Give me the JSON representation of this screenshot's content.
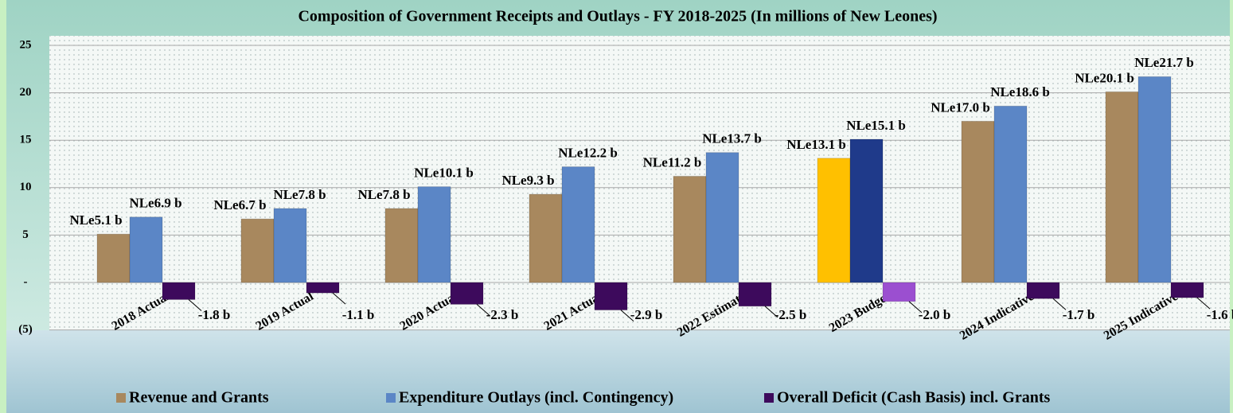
{
  "chart_data": {
    "type": "bar",
    "title": "Composition of Government Receipts and Outlays - FY 2018-2025 (In millions of New Leones)",
    "categories": [
      "2018 Actual",
      "2019 Actual",
      "2020 Actual",
      "2021 Actual",
      "2022 Estimate",
      "2023 Budget",
      "2024 Indicative",
      "2025 Indicative"
    ],
    "series": [
      {
        "name": "Revenue and Grants",
        "color": "#a8885e",
        "colors": [
          "#a8885e",
          "#a8885e",
          "#a8885e",
          "#a8885e",
          "#a8885e",
          "#ffc000",
          "#a8885e",
          "#a8885e"
        ],
        "values": [
          5.1,
          6.7,
          7.8,
          9.3,
          11.2,
          13.1,
          17.0,
          20.1
        ],
        "value_labels": [
          "NLe5.1 b",
          "NLe6.7 b",
          "NLe7.8 b",
          "NLe9.3 b",
          "NLe11.2 b",
          "NLe13.1 b",
          "NLe17.0 b",
          "NLe20.1 b"
        ]
      },
      {
        "name": "Expenditure Outlays (incl. Contingency)",
        "color": "#5b86c6",
        "colors": [
          "#5b86c6",
          "#5b86c6",
          "#5b86c6",
          "#5b86c6",
          "#5b86c6",
          "#1f3a8a",
          "#5b86c6",
          "#5b86c6"
        ],
        "values": [
          6.9,
          7.8,
          10.1,
          12.2,
          13.7,
          15.1,
          18.6,
          21.7
        ],
        "value_labels": [
          "NLe6.9 b",
          "NLe7.8 b",
          "NLe10.1 b",
          "NLe12.2 b",
          "NLe13.7 b",
          "NLe15.1 b",
          "NLe18.6 b",
          "NLe21.7 b"
        ]
      },
      {
        "name": "Overall Deficit (Cash Basis) incl. Grants",
        "color": "#3d0a5c",
        "colors": [
          "#3d0a5c",
          "#3d0a5c",
          "#3d0a5c",
          "#3d0a5c",
          "#3d0a5c",
          "#9b4fd0",
          "#3d0a5c",
          "#3d0a5c"
        ],
        "values": [
          -1.8,
          -1.1,
          -2.3,
          -2.9,
          -2.5,
          -2.0,
          -1.7,
          -1.6
        ],
        "value_labels": [
          "-1.8 b",
          "-1.1 b",
          "-2.3 b",
          "-2.9 b",
          "-2.5 b",
          "-2.0 b",
          "-1.7 b",
          "-1.6 b"
        ]
      }
    ],
    "ylim": [
      -5,
      25
    ],
    "yticks": [
      {
        "value": -5,
        "label": "(5)"
      },
      {
        "value": 0,
        "label": "-"
      },
      5,
      10,
      15,
      20,
      25
    ],
    "grid": true,
    "legend": "bottom"
  }
}
